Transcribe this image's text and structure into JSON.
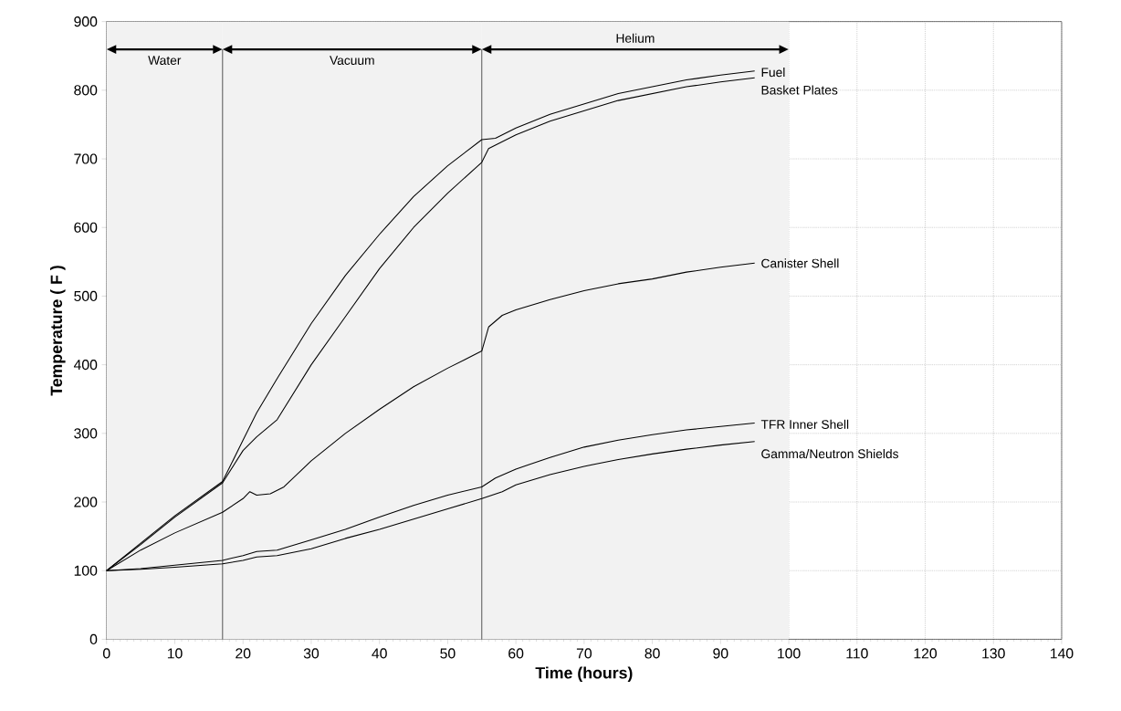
{
  "chart_data": {
    "type": "line",
    "xlabel": "Time (hours)",
    "ylabel": "Temperature ( F )",
    "xlim": [
      0,
      140
    ],
    "ylim": [
      0,
      900
    ],
    "xticks": [
      0,
      10,
      20,
      30,
      40,
      50,
      60,
      70,
      80,
      90,
      100,
      110,
      120,
      130,
      140
    ],
    "yticks": [
      0,
      100,
      200,
      300,
      400,
      500,
      600,
      700,
      800,
      900
    ],
    "grid": true,
    "legend": false,
    "marker": "none",
    "line_style": "solid",
    "series": [
      {
        "name": "Fuel",
        "color": "#000000",
        "x": [
          0,
          5,
          10,
          17,
          20,
          22,
          25,
          30,
          35,
          40,
          45,
          50,
          55,
          57,
          60,
          65,
          70,
          75,
          80,
          85,
          90,
          95
        ],
        "values": [
          100,
          140,
          180,
          230,
          290,
          330,
          380,
          460,
          530,
          590,
          645,
          690,
          728,
          730,
          745,
          765,
          780,
          795,
          805,
          815,
          822,
          828
        ]
      },
      {
        "name": "Basket Plates",
        "color": "#000000",
        "x": [
          0,
          5,
          10,
          17,
          20,
          22,
          25,
          30,
          35,
          40,
          45,
          50,
          55,
          56,
          60,
          65,
          70,
          75,
          80,
          85,
          90,
          95
        ],
        "values": [
          100,
          138,
          178,
          228,
          275,
          295,
          320,
          400,
          470,
          540,
          600,
          650,
          695,
          715,
          735,
          755,
          770,
          785,
          795,
          805,
          812,
          818
        ]
      },
      {
        "name": "Canister Shell",
        "color": "#000000",
        "x": [
          0,
          5,
          10,
          17,
          20,
          21,
          22,
          24,
          26,
          30,
          35,
          40,
          45,
          50,
          55,
          56,
          58,
          60,
          65,
          70,
          75,
          80,
          85,
          90,
          95
        ],
        "values": [
          100,
          130,
          155,
          185,
          205,
          215,
          210,
          212,
          222,
          260,
          300,
          335,
          368,
          395,
          420,
          455,
          472,
          480,
          495,
          508,
          518,
          525,
          535,
          542,
          548
        ]
      },
      {
        "name": "TFR Inner Shell",
        "color": "#000000",
        "x": [
          0,
          5,
          10,
          17,
          20,
          22,
          25,
          30,
          35,
          40,
          45,
          50,
          55,
          57,
          60,
          65,
          70,
          75,
          80,
          85,
          90,
          95
        ],
        "values": [
          100,
          103,
          108,
          115,
          122,
          128,
          130,
          145,
          160,
          178,
          195,
          210,
          222,
          235,
          248,
          265,
          280,
          290,
          298,
          305,
          310,
          315
        ]
      },
      {
        "name": "Gamma/Neutron Shields",
        "color": "#000000",
        "x": [
          0,
          5,
          10,
          17,
          20,
          22,
          25,
          30,
          35,
          40,
          45,
          50,
          55,
          58,
          60,
          65,
          70,
          75,
          80,
          85,
          90,
          95
        ],
        "values": [
          100,
          102,
          105,
          110,
          115,
          120,
          122,
          132,
          147,
          160,
          175,
          190,
          205,
          215,
          225,
          240,
          252,
          262,
          270,
          277,
          283,
          288
        ]
      }
    ],
    "ref_lines": [
      {
        "axis": "x",
        "value": 17
      },
      {
        "axis": "x",
        "value": 55
      }
    ],
    "bands": [
      {
        "axis": "x",
        "from": 0,
        "to": 17,
        "label": "Water",
        "color": "#f2f2f2"
      },
      {
        "axis": "x",
        "from": 17,
        "to": 55,
        "label": "Vacuum",
        "color": "#f2f2f2"
      },
      {
        "axis": "x",
        "from": 55,
        "to": 100,
        "label": "Helium",
        "color": "#f2f2f2"
      }
    ]
  }
}
